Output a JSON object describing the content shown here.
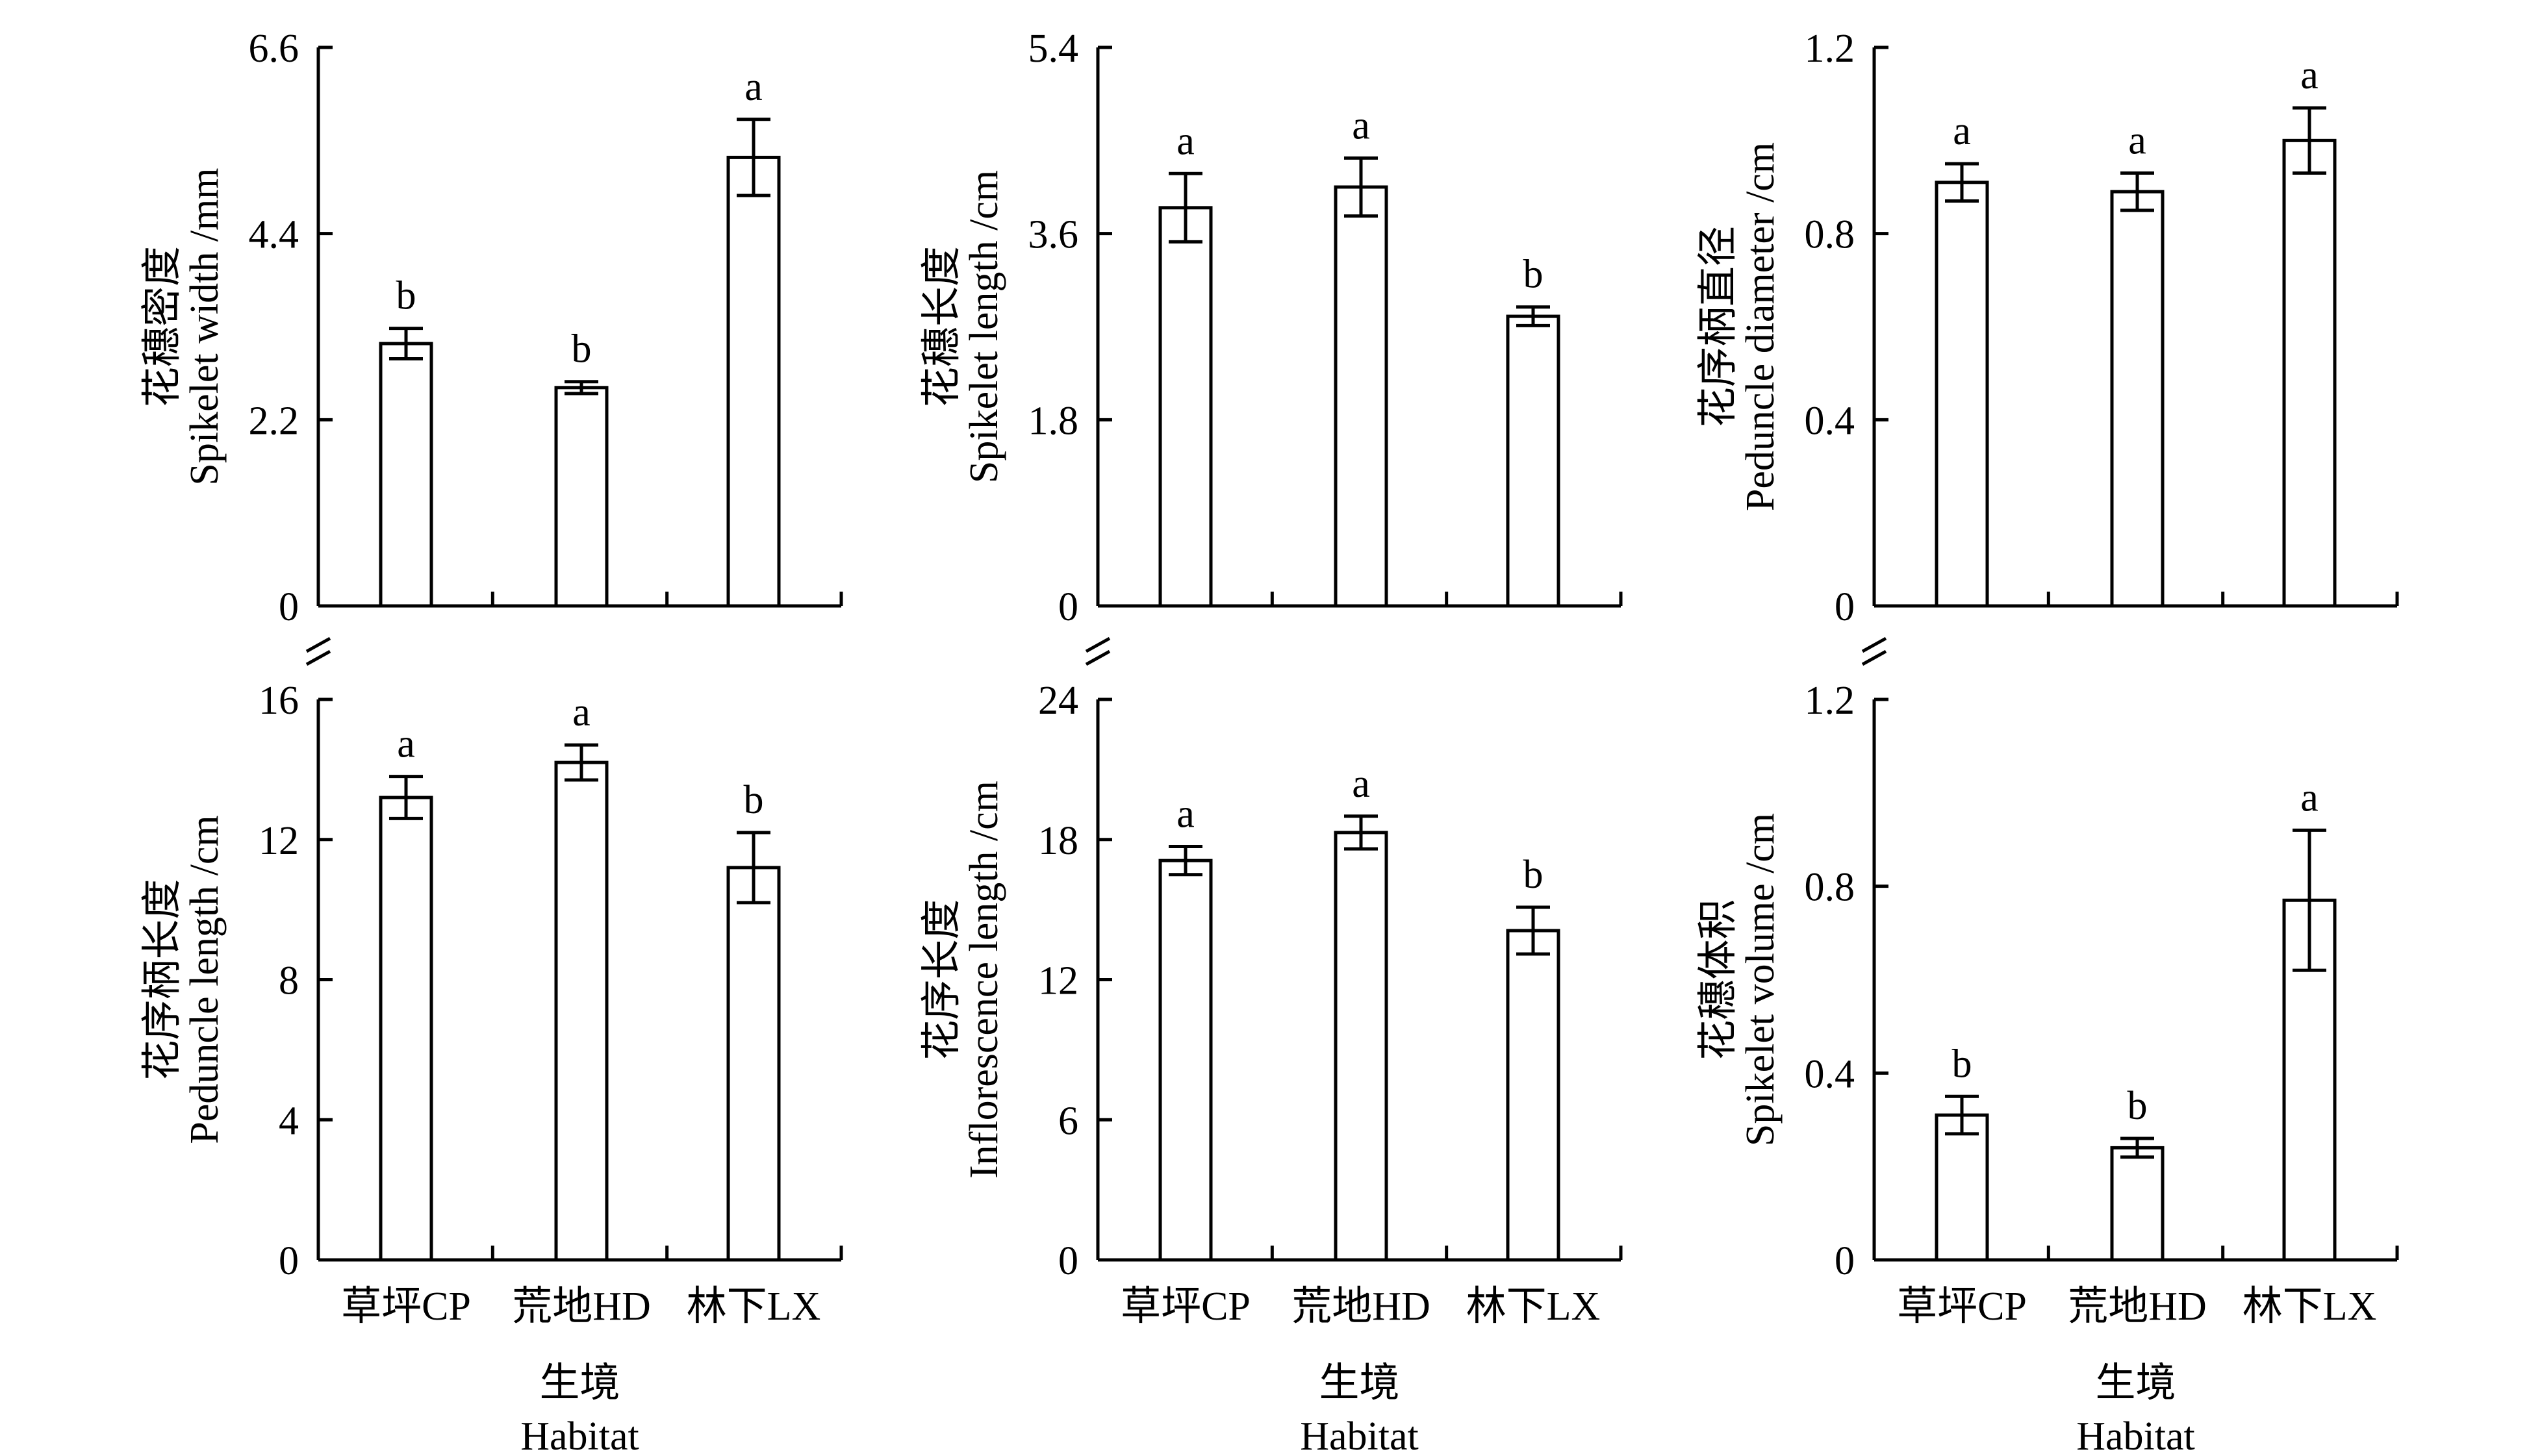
{
  "chart_data": [
    {
      "type": "bar",
      "panel": "top-left",
      "categories": [
        "草坪CP",
        "荒地HD",
        "林下LX"
      ],
      "values": [
        3.1,
        2.58,
        5.3
      ],
      "errors": [
        0.18,
        0.07,
        0.45
      ],
      "letters": [
        "b",
        "b",
        "a"
      ],
      "ylabel_cn": "花穗密度",
      "ylabel_en": "Spikelet width /mm",
      "ylim": [
        0,
        6.6
      ],
      "yticks": [
        "0",
        "2.2",
        "4.4",
        "6.6"
      ],
      "show_xlabels": false
    },
    {
      "type": "bar",
      "panel": "top-middle",
      "categories": [
        "草坪CP",
        "荒地HD",
        "林下LX"
      ],
      "values": [
        3.85,
        4.05,
        2.8
      ],
      "errors": [
        0.33,
        0.28,
        0.09
      ],
      "letters": [
        "a",
        "a",
        "b"
      ],
      "ylabel_cn": "花穗长度",
      "ylabel_en": "Spikelet length /cm",
      "ylim": [
        0,
        5.4
      ],
      "yticks": [
        "0",
        "1.8",
        "3.6",
        "5.4"
      ],
      "show_xlabels": false
    },
    {
      "type": "bar",
      "panel": "top-right",
      "categories": [
        "草坪CP",
        "荒地HD",
        "林下LX"
      ],
      "values": [
        0.91,
        0.89,
        1.0
      ],
      "errors": [
        0.04,
        0.04,
        0.07
      ],
      "letters": [
        "a",
        "a",
        "a"
      ],
      "ylabel_cn": "花序柄直径",
      "ylabel_en": "Peduncle diameter /cm",
      "ylim": [
        0,
        1.2
      ],
      "yticks": [
        "0",
        "0.4",
        "0.8",
        "1.2"
      ],
      "show_xlabels": false
    },
    {
      "type": "bar",
      "panel": "bottom-left",
      "categories": [
        "草坪CP",
        "荒地HD",
        "林下LX"
      ],
      "values": [
        13.2,
        14.2,
        11.2
      ],
      "errors": [
        0.6,
        0.5,
        1.0
      ],
      "letters": [
        "a",
        "a",
        "b"
      ],
      "ylabel_cn": "花序柄长度",
      "ylabel_en": "Peduncle length /cm",
      "ylim": [
        0,
        16
      ],
      "yticks": [
        "0",
        "4",
        "8",
        "12",
        "16"
      ],
      "show_xlabels": true
    },
    {
      "type": "bar",
      "panel": "bottom-middle",
      "categories": [
        "草坪CP",
        "荒地HD",
        "林下LX"
      ],
      "values": [
        17.1,
        18.3,
        14.1
      ],
      "errors": [
        0.6,
        0.7,
        1.0
      ],
      "letters": [
        "a",
        "a",
        "b"
      ],
      "ylabel_cn": "花序长度",
      "ylabel_en": "Inflorescence length /cm",
      "ylim": [
        0,
        24
      ],
      "yticks": [
        "0",
        "6",
        "12",
        "18",
        "24"
      ],
      "show_xlabels": true
    },
    {
      "type": "bar",
      "panel": "bottom-right",
      "categories": [
        "草坪CP",
        "荒地HD",
        "林下LX"
      ],
      "values": [
        0.31,
        0.24,
        0.77
      ],
      "errors": [
        0.04,
        0.02,
        0.15
      ],
      "letters": [
        "b",
        "b",
        "a"
      ],
      "ylabel_cn": "花穗体积",
      "ylabel_en": "Spikelet volume /cm",
      "ylim": [
        0,
        1.2
      ],
      "yticks": [
        "0",
        "0.4",
        "0.8",
        "1.2"
      ],
      "show_xlabels": true
    }
  ],
  "xaxis_title_cn": "生境",
  "xaxis_title_en": "Habitat",
  "colors": {
    "bar_fill": "#ffffff",
    "stroke": "#000000"
  }
}
